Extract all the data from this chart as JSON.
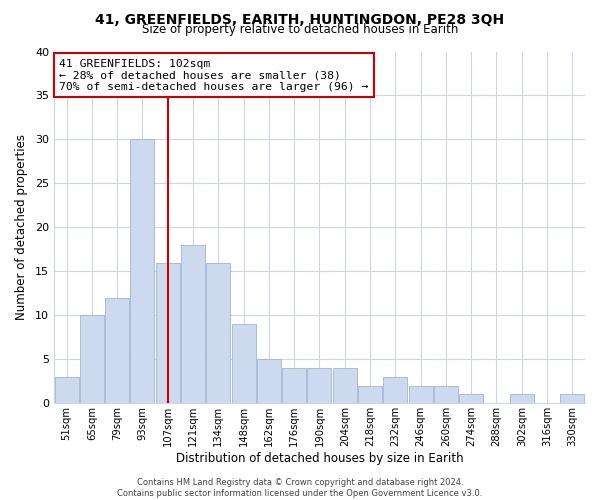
{
  "title": "41, GREENFIELDS, EARITH, HUNTINGDON, PE28 3QH",
  "subtitle": "Size of property relative to detached houses in Earith",
  "xlabel": "Distribution of detached houses by size in Earith",
  "ylabel": "Number of detached properties",
  "bar_labels": [
    "51sqm",
    "65sqm",
    "79sqm",
    "93sqm",
    "107sqm",
    "121sqm",
    "134sqm",
    "148sqm",
    "162sqm",
    "176sqm",
    "190sqm",
    "204sqm",
    "218sqm",
    "232sqm",
    "246sqm",
    "260sqm",
    "274sqm",
    "288sqm",
    "302sqm",
    "316sqm",
    "330sqm"
  ],
  "bar_values": [
    3,
    10,
    12,
    30,
    16,
    18,
    16,
    9,
    5,
    4,
    4,
    4,
    2,
    3,
    2,
    2,
    1,
    0,
    1,
    0,
    1
  ],
  "bar_color": "#ccd9ee",
  "bar_edge_color": "#9fb5d4",
  "marker_line_color": "#cc0000",
  "ylim": [
    0,
    40
  ],
  "yticks": [
    0,
    5,
    10,
    15,
    20,
    25,
    30,
    35,
    40
  ],
  "annotation_text": "41 GREENFIELDS: 102sqm\n← 28% of detached houses are smaller (38)\n70% of semi-detached houses are larger (96) →",
  "annotation_box_color": "#ffffff",
  "annotation_box_edge": "#cc0000",
  "footer": "Contains HM Land Registry data © Crown copyright and database right 2024.\nContains public sector information licensed under the Open Government Licence v3.0.",
  "background_color": "#ffffff",
  "grid_color": "#ccd6e8",
  "title_fontsize": 10,
  "subtitle_fontsize": 8.5
}
